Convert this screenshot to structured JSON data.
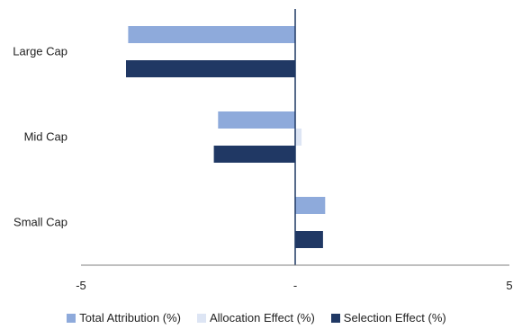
{
  "chart_data": {
    "type": "bar",
    "orientation": "horizontal",
    "categories": [
      "Large Cap",
      "Mid Cap",
      "Small Cap"
    ],
    "series": [
      {
        "name": "Total Attribution (%)",
        "color": "#8eaadb",
        "values": [
          -3.9,
          -1.8,
          0.7
        ]
      },
      {
        "name": "Allocation Effect (%)",
        "color": "#dde5f4",
        "values": [
          0.0,
          0.15,
          0.0
        ]
      },
      {
        "name": "Selection Effect (%)",
        "color": "#203864",
        "values": [
          -3.95,
          -1.9,
          0.65
        ]
      }
    ],
    "xlim": [
      -5,
      5
    ],
    "x_ticks": [
      {
        "value": -5,
        "label": "-5"
      },
      {
        "value": 0,
        "label": "-"
      },
      {
        "value": 5,
        "label": "5"
      }
    ],
    "title": "",
    "xlabel": "",
    "ylabel": "",
    "grid": false,
    "legend_position": "bottom"
  }
}
